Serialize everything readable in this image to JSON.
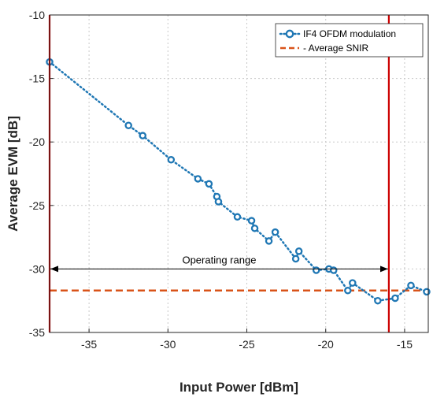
{
  "chart_data": {
    "type": "line",
    "xlabel": "Input Power [dBm]",
    "ylabel": "Average EVM [dB]",
    "xlim": [
      -37.5,
      -13.5
    ],
    "ylim": [
      -35,
      -10
    ],
    "xticks": [
      -35,
      -30,
      -25,
      -20,
      -15
    ],
    "yticks": [
      -10,
      -15,
      -20,
      -25,
      -30,
      -35
    ],
    "xtick_labels": [
      "-35",
      "-30",
      "-25",
      "-20",
      "-15"
    ],
    "ytick_labels": [
      "-10",
      "-15",
      "-20",
      "-25",
      "-30",
      "-35"
    ],
    "grid": true,
    "legend_position": "top-right",
    "series": [
      {
        "name": "IF4 OFDM modulation",
        "style": "dotted-line-circle-markers",
        "color": "#1f77b4",
        "x": [
          -37.5,
          -32.5,
          -31.6,
          -29.8,
          -28.1,
          -27.4,
          -26.9,
          -26.8,
          -25.6,
          -24.7,
          -24.5,
          -23.6,
          -23.2,
          -21.9,
          -21.7,
          -20.6,
          -19.8,
          -19.5,
          -18.6,
          -18.3,
          -16.7,
          -15.6,
          -14.6,
          -13.6
        ],
        "y": [
          -13.7,
          -18.7,
          -19.5,
          -21.4,
          -22.9,
          -23.3,
          -24.3,
          -24.7,
          -25.9,
          -26.2,
          -26.8,
          -27.8,
          -27.1,
          -29.2,
          -28.6,
          -30.1,
          -30.0,
          -30.1,
          -31.7,
          -31.1,
          -32.5,
          -32.3,
          -31.3,
          -31.8
        ]
      },
      {
        "name": "Average SNIR",
        "style": "dashed",
        "color": "#d95319",
        "y_constant": -31.7
      }
    ],
    "vertical_lines": [
      {
        "x": -37.5,
        "color": "#cc0000"
      },
      {
        "x": -16.0,
        "color": "#cc0000"
      }
    ],
    "annotations": [
      {
        "text": "Operating range",
        "x_from": -37.5,
        "x_to": -16.0,
        "y": -30.0
      }
    ]
  }
}
